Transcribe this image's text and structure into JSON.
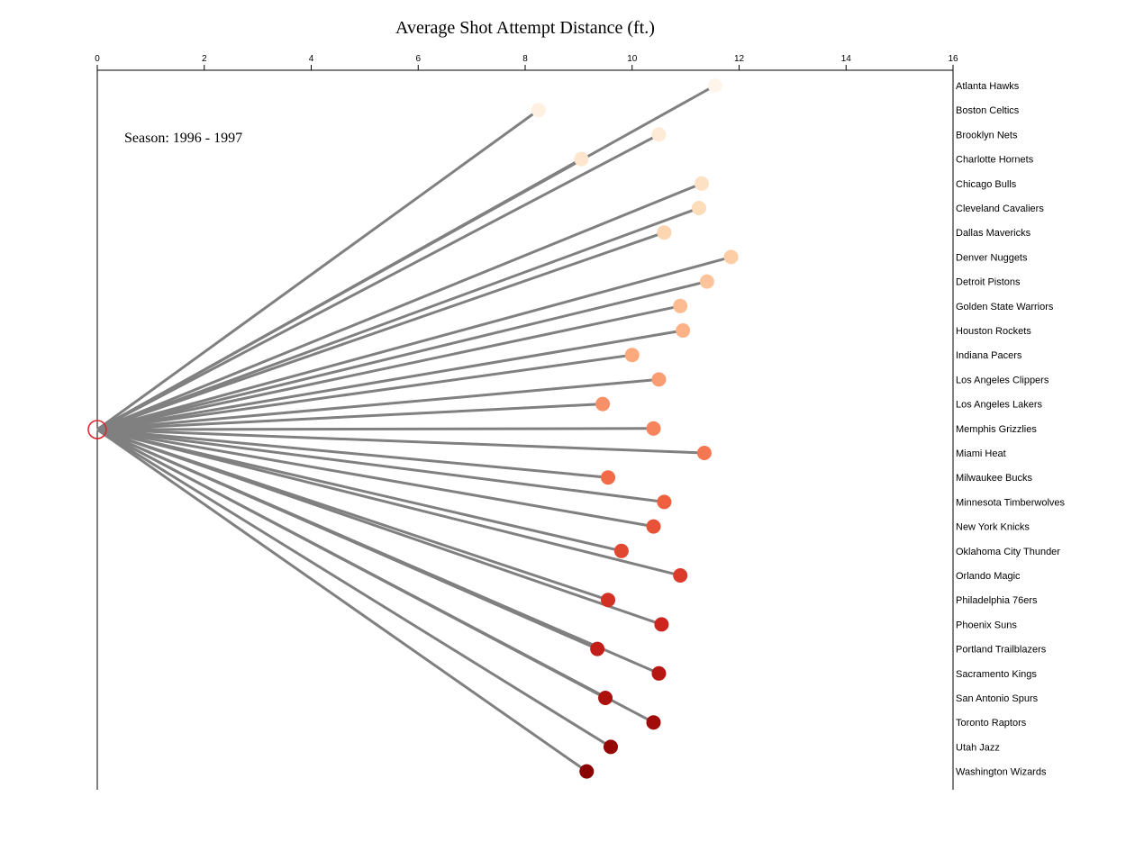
{
  "chart_data": {
    "type": "scatter",
    "title": "Average Shot Attempt Distance (ft.)",
    "annotation": "Season: 1996 - 1997",
    "xlim": [
      0,
      16
    ],
    "x_ticks": [
      0,
      2,
      4,
      6,
      8,
      10,
      12,
      14,
      16
    ],
    "grid": false,
    "line_color": "#808080",
    "origin_marker_color": "#e0202a",
    "color_scale": [
      "#fff5eb",
      "#fdd9b4",
      "#fca77a",
      "#f0603f",
      "#c9201b",
      "#8b0000"
    ],
    "points": [
      {
        "team": "Atlanta Hawks",
        "distance": 11.55
      },
      {
        "team": "Boston Celtics",
        "distance": 8.25
      },
      {
        "team": "Brooklyn Nets",
        "distance": 10.5
      },
      {
        "team": "Charlotte Hornets",
        "distance": 9.05
      },
      {
        "team": "Chicago Bulls",
        "distance": 11.3
      },
      {
        "team": "Cleveland Cavaliers",
        "distance": 11.25
      },
      {
        "team": "Dallas Mavericks",
        "distance": 10.6
      },
      {
        "team": "Denver Nuggets",
        "distance": 11.85
      },
      {
        "team": "Detroit Pistons",
        "distance": 11.4
      },
      {
        "team": "Golden State Warriors",
        "distance": 10.9
      },
      {
        "team": "Houston Rockets",
        "distance": 10.95
      },
      {
        "team": "Indiana Pacers",
        "distance": 10.0
      },
      {
        "team": "Los Angeles Clippers",
        "distance": 10.5
      },
      {
        "team": "Los Angeles Lakers",
        "distance": 9.45
      },
      {
        "team": "Memphis Grizzlies",
        "distance": 10.4
      },
      {
        "team": "Miami Heat",
        "distance": 11.35
      },
      {
        "team": "Milwaukee Bucks",
        "distance": 9.55
      },
      {
        "team": "Minnesota Timberwolves",
        "distance": 10.6
      },
      {
        "team": "New York Knicks",
        "distance": 10.4
      },
      {
        "team": "Oklahoma City Thunder",
        "distance": 9.8
      },
      {
        "team": "Orlando Magic",
        "distance": 10.9
      },
      {
        "team": "Philadelphia 76ers",
        "distance": 9.55
      },
      {
        "team": "Phoenix Suns",
        "distance": 10.55
      },
      {
        "team": "Portland Trailblazers",
        "distance": 9.35
      },
      {
        "team": "Sacramento Kings",
        "distance": 10.5
      },
      {
        "team": "San Antonio Spurs",
        "distance": 9.5
      },
      {
        "team": "Toronto Raptors",
        "distance": 10.4
      },
      {
        "team": "Utah Jazz",
        "distance": 9.6
      },
      {
        "team": "Washington Wizards",
        "distance": 9.15
      }
    ]
  }
}
